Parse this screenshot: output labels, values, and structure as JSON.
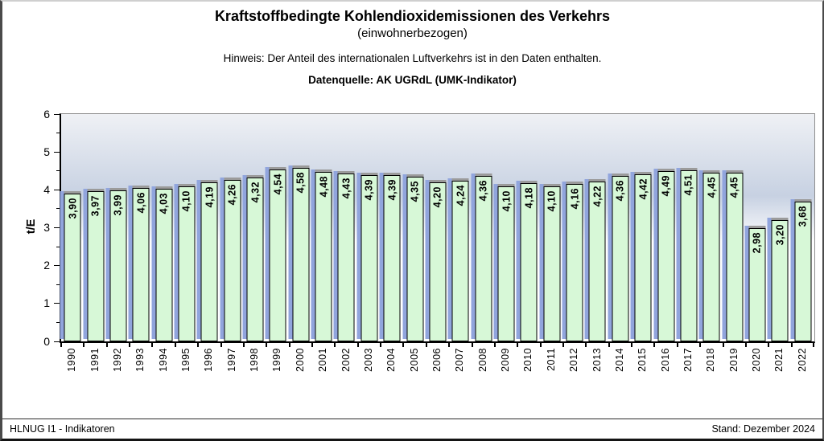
{
  "header": {
    "title": "Kraftstoffbedingte Kohlendioxidemissionen des Verkehrs",
    "subtitle": "(einwohnerbezogen)",
    "note": "Hinweis: Der Anteil des internationalen Luftverkehrs ist in den Daten enthalten.",
    "source": "Datenquelle: AK UGRdL (UMK-Indikator)"
  },
  "footer": {
    "left": "HLNUG I1 - Indikatoren",
    "right": "Stand: Dezember 2024"
  },
  "chart_data": {
    "type": "bar",
    "title": "Kraftstoffbedingte Kohlendioxidemissionen des Verkehrs (einwohnerbezogen)",
    "xlabel": "",
    "ylabel": "t/E",
    "ylim": [
      0,
      6
    ],
    "yticks": [
      0,
      1,
      2,
      3,
      4,
      5,
      6
    ],
    "ytick_minor_step": 0.5,
    "grid": false,
    "legend": "none",
    "categories": [
      "1990",
      "1991",
      "1992",
      "1993",
      "1994",
      "1995",
      "1996",
      "1997",
      "1998",
      "1999",
      "2000",
      "2001",
      "2002",
      "2003",
      "2004",
      "2005",
      "2006",
      "2007",
      "2008",
      "2009",
      "2010",
      "2011",
      "2012",
      "2013",
      "2014",
      "2015",
      "2016",
      "2017",
      "2018",
      "2019",
      "2020",
      "2021",
      "2022"
    ],
    "values": [
      3.9,
      3.97,
      3.99,
      4.06,
      4.03,
      4.1,
      4.19,
      4.26,
      4.32,
      4.54,
      4.58,
      4.48,
      4.43,
      4.39,
      4.39,
      4.35,
      4.2,
      4.24,
      4.36,
      4.1,
      4.18,
      4.1,
      4.16,
      4.22,
      4.36,
      4.42,
      4.49,
      4.51,
      4.45,
      4.45,
      2.98,
      3.2,
      3.68
    ],
    "value_labels": [
      "3,90",
      "3,97",
      "3,99",
      "4,06",
      "4,03",
      "4,10",
      "4,19",
      "4,26",
      "4,32",
      "4,54",
      "4,58",
      "4,48",
      "4,43",
      "4,39",
      "4,39",
      "4,35",
      "4,20",
      "4,24",
      "4,36",
      "4,10",
      "4,18",
      "4,10",
      "4,16",
      "4,22",
      "4,36",
      "4,42",
      "4,49",
      "4,51",
      "4,45",
      "4,45",
      "2,98",
      "3,20",
      "3,68"
    ],
    "colors": {
      "bar_fill": "#d7f8d7",
      "bar_border": "#000000",
      "shadow_side": "#91a5dd",
      "shadow_top": "#9b9b9b",
      "plot_bg_top": "#eff1f5",
      "plot_bg_mid": "#c7d1e2",
      "plot_bg_bottom": "#ffffff"
    }
  }
}
